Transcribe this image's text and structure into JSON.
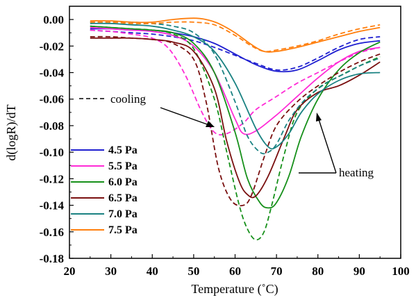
{
  "chart_data": {
    "type": "line",
    "title": "",
    "xlabel": "Temperature (˚C)",
    "ylabel": "d(logR)/dT",
    "xlim": [
      20,
      100
    ],
    "ylim": [
      -0.18,
      0.01
    ],
    "xticks": [
      20,
      30,
      40,
      50,
      60,
      70,
      80,
      90,
      100
    ],
    "yticks": [
      0.0,
      -0.02,
      -0.04,
      -0.06,
      -0.08,
      -0.1,
      -0.12,
      -0.14,
      -0.16,
      -0.18
    ],
    "ytick_labels": [
      "0.00",
      "-0.02",
      "-0.04",
      "-0.06",
      "-0.08",
      "-0.10",
      "-0.12",
      "-0.14",
      "-0.16",
      "-0.18"
    ],
    "grid": false,
    "legend_position": "bottom-left",
    "line_styles": {
      "heating": "solid",
      "cooling": "dashed"
    },
    "annotations": [
      {
        "text": "cooling",
        "style": "dashed-key"
      },
      {
        "text": "heating"
      }
    ],
    "series": [
      {
        "name": "4.5 Pa",
        "color": "#1f1fd0",
        "heating": {
          "x": [
            25,
            30,
            35,
            40,
            45,
            50,
            55,
            60,
            65,
            70,
            75,
            80,
            85,
            90,
            95
          ],
          "y": [
            -0.007,
            -0.007,
            -0.008,
            -0.008,
            -0.01,
            -0.013,
            -0.018,
            -0.026,
            -0.034,
            -0.039,
            -0.038,
            -0.031,
            -0.023,
            -0.018,
            -0.016
          ]
        },
        "cooling": {
          "x": [
            25,
            30,
            35,
            40,
            45,
            50,
            55,
            60,
            65,
            70,
            75,
            80,
            85,
            90,
            95
          ],
          "y": [
            -0.008,
            -0.009,
            -0.01,
            -0.011,
            -0.013,
            -0.016,
            -0.021,
            -0.027,
            -0.033,
            -0.038,
            -0.036,
            -0.029,
            -0.021,
            -0.015,
            -0.013
          ]
        }
      },
      {
        "name": "5.5 Pa",
        "color": "#ff2bd6",
        "heating": {
          "x": [
            25,
            30,
            35,
            40,
            45,
            50,
            55,
            60,
            62,
            65,
            70,
            75,
            80,
            85,
            90,
            95
          ],
          "y": [
            -0.006,
            -0.007,
            -0.008,
            -0.009,
            -0.012,
            -0.02,
            -0.04,
            -0.075,
            -0.086,
            -0.084,
            -0.072,
            -0.058,
            -0.044,
            -0.032,
            -0.024,
            -0.021
          ]
        },
        "cooling": {
          "x": [
            25,
            30,
            35,
            40,
            44,
            48,
            52,
            55,
            58,
            62,
            65,
            70,
            75,
            80,
            85,
            90,
            95
          ],
          "y": [
            -0.008,
            -0.009,
            -0.011,
            -0.014,
            -0.022,
            -0.042,
            -0.07,
            -0.085,
            -0.086,
            -0.078,
            -0.068,
            -0.058,
            -0.048,
            -0.04,
            -0.032,
            -0.025,
            -0.021
          ]
        }
      },
      {
        "name": "6.0 Pa",
        "color": "#16901a",
        "heating": {
          "x": [
            25,
            30,
            35,
            40,
            45,
            50,
            55,
            60,
            63,
            66,
            68,
            70,
            73,
            76,
            80,
            85,
            90,
            95
          ],
          "y": [
            -0.005,
            -0.006,
            -0.007,
            -0.008,
            -0.01,
            -0.018,
            -0.04,
            -0.085,
            -0.12,
            -0.138,
            -0.142,
            -0.138,
            -0.118,
            -0.088,
            -0.06,
            -0.038,
            -0.025,
            -0.017
          ]
        },
        "cooling": {
          "x": [
            25,
            30,
            35,
            40,
            45,
            50,
            55,
            58,
            61,
            63,
            65,
            67,
            69,
            72,
            75,
            80,
            85,
            90,
            95
          ],
          "y": [
            -0.005,
            -0.006,
            -0.007,
            -0.008,
            -0.011,
            -0.022,
            -0.06,
            -0.1,
            -0.14,
            -0.158,
            -0.166,
            -0.16,
            -0.138,
            -0.1,
            -0.07,
            -0.052,
            -0.043,
            -0.035,
            -0.028
          ]
        }
      },
      {
        "name": "6.5 Pa",
        "color": "#7a1010",
        "heating": {
          "x": [
            25,
            30,
            35,
            40,
            45,
            50,
            55,
            58,
            61,
            63,
            65,
            68,
            72,
            75,
            80,
            85,
            90,
            95
          ],
          "y": [
            -0.014,
            -0.014,
            -0.014,
            -0.015,
            -0.017,
            -0.024,
            -0.052,
            -0.092,
            -0.122,
            -0.132,
            -0.133,
            -0.118,
            -0.088,
            -0.068,
            -0.055,
            -0.05,
            -0.042,
            -0.032
          ]
        },
        "cooling": {
          "x": [
            25,
            30,
            35,
            40,
            45,
            50,
            53,
            56,
            59,
            62,
            64,
            67,
            70,
            75,
            80,
            85,
            90,
            95
          ],
          "y": [
            -0.013,
            -0.013,
            -0.014,
            -0.015,
            -0.018,
            -0.03,
            -0.062,
            -0.112,
            -0.136,
            -0.14,
            -0.132,
            -0.104,
            -0.08,
            -0.062,
            -0.05,
            -0.04,
            -0.032,
            -0.026
          ]
        }
      },
      {
        "name": "7.0 Pa",
        "color": "#1a8282",
        "heating": {
          "x": [
            25,
            30,
            35,
            40,
            45,
            50,
            55,
            60,
            65,
            68,
            70,
            73,
            76,
            80,
            85,
            90,
            95
          ],
          "y": [
            -0.003,
            -0.003,
            -0.004,
            -0.005,
            -0.008,
            -0.013,
            -0.024,
            -0.048,
            -0.082,
            -0.096,
            -0.096,
            -0.086,
            -0.07,
            -0.056,
            -0.046,
            -0.041,
            -0.04
          ]
        },
        "cooling": {
          "x": [
            25,
            30,
            35,
            40,
            45,
            50,
            55,
            60,
            63,
            66,
            68,
            70,
            73,
            77,
            82,
            87,
            90,
            95
          ],
          "y": [
            -0.002,
            -0.002,
            -0.002,
            -0.003,
            -0.005,
            -0.01,
            -0.026,
            -0.062,
            -0.088,
            -0.1,
            -0.1,
            -0.094,
            -0.076,
            -0.06,
            -0.048,
            -0.04,
            -0.035,
            -0.029
          ]
        }
      },
      {
        "name": "7.5 Pa",
        "color": "#ff7f0e",
        "heating": {
          "x": [
            25,
            30,
            35,
            40,
            45,
            50,
            53,
            56,
            60,
            64,
            67,
            70,
            75,
            80,
            85,
            90,
            95
          ],
          "y": [
            -0.001,
            -0.001,
            -0.002,
            -0.002,
            0.0,
            0.001,
            0.0,
            -0.003,
            -0.01,
            -0.019,
            -0.024,
            -0.024,
            -0.021,
            -0.017,
            -0.013,
            -0.009,
            -0.006
          ]
        },
        "cooling": {
          "x": [
            25,
            30,
            35,
            40,
            45,
            50,
            55,
            60,
            64,
            67,
            70,
            75,
            80,
            85,
            90,
            95
          ],
          "y": [
            -0.002,
            -0.002,
            -0.003,
            -0.003,
            -0.002,
            -0.002,
            -0.004,
            -0.012,
            -0.02,
            -0.024,
            -0.023,
            -0.02,
            -0.016,
            -0.011,
            -0.007,
            -0.004
          ]
        }
      }
    ]
  }
}
